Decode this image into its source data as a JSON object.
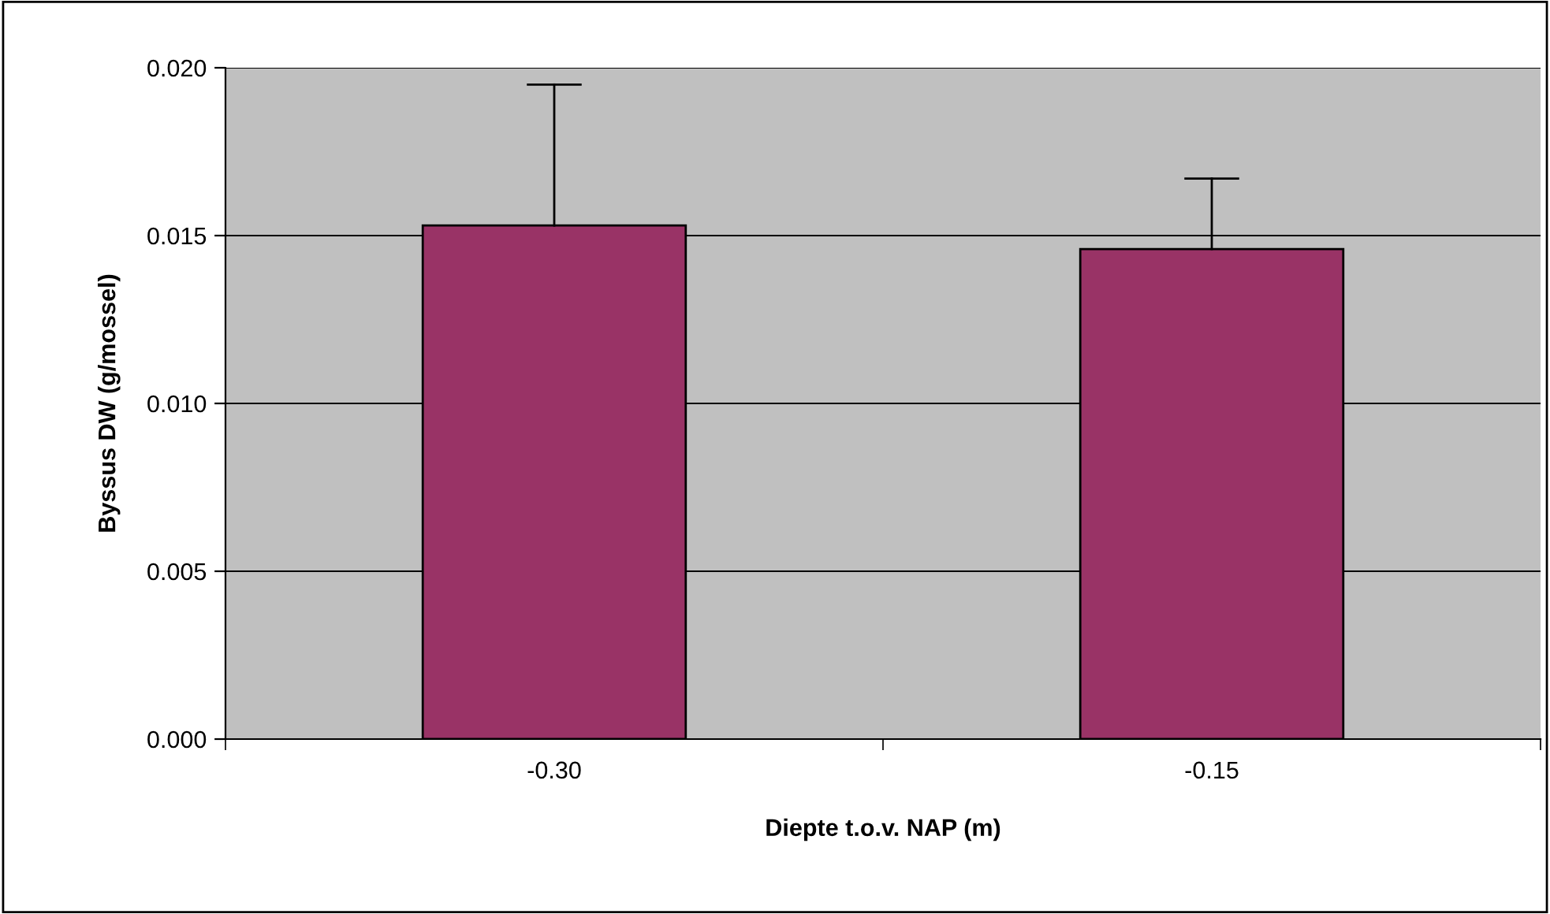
{
  "chart_data": {
    "type": "bar",
    "xlabel": "Diepte t.o.v. NAP (m)",
    "ylabel": "Byssus DW (g/mossel)",
    "categories": [
      "-0.30",
      "-0.15"
    ],
    "values": [
      0.0153,
      0.0146
    ],
    "errors": [
      [
        0.0153,
        0.0195
      ],
      [
        0.0146,
        0.0167
      ]
    ],
    "color": "#993366",
    "ylim": [
      0,
      0.02
    ],
    "yticks": [
      {
        "value": 0,
        "label": "0.000"
      },
      {
        "value": 0.005,
        "label": "0.005"
      },
      {
        "value": 0.01,
        "label": "0.010"
      },
      {
        "value": 0.015,
        "label": "0.015"
      },
      {
        "value": 0.02,
        "label": "0.020"
      }
    ],
    "grid": "y",
    "legend": false
  }
}
